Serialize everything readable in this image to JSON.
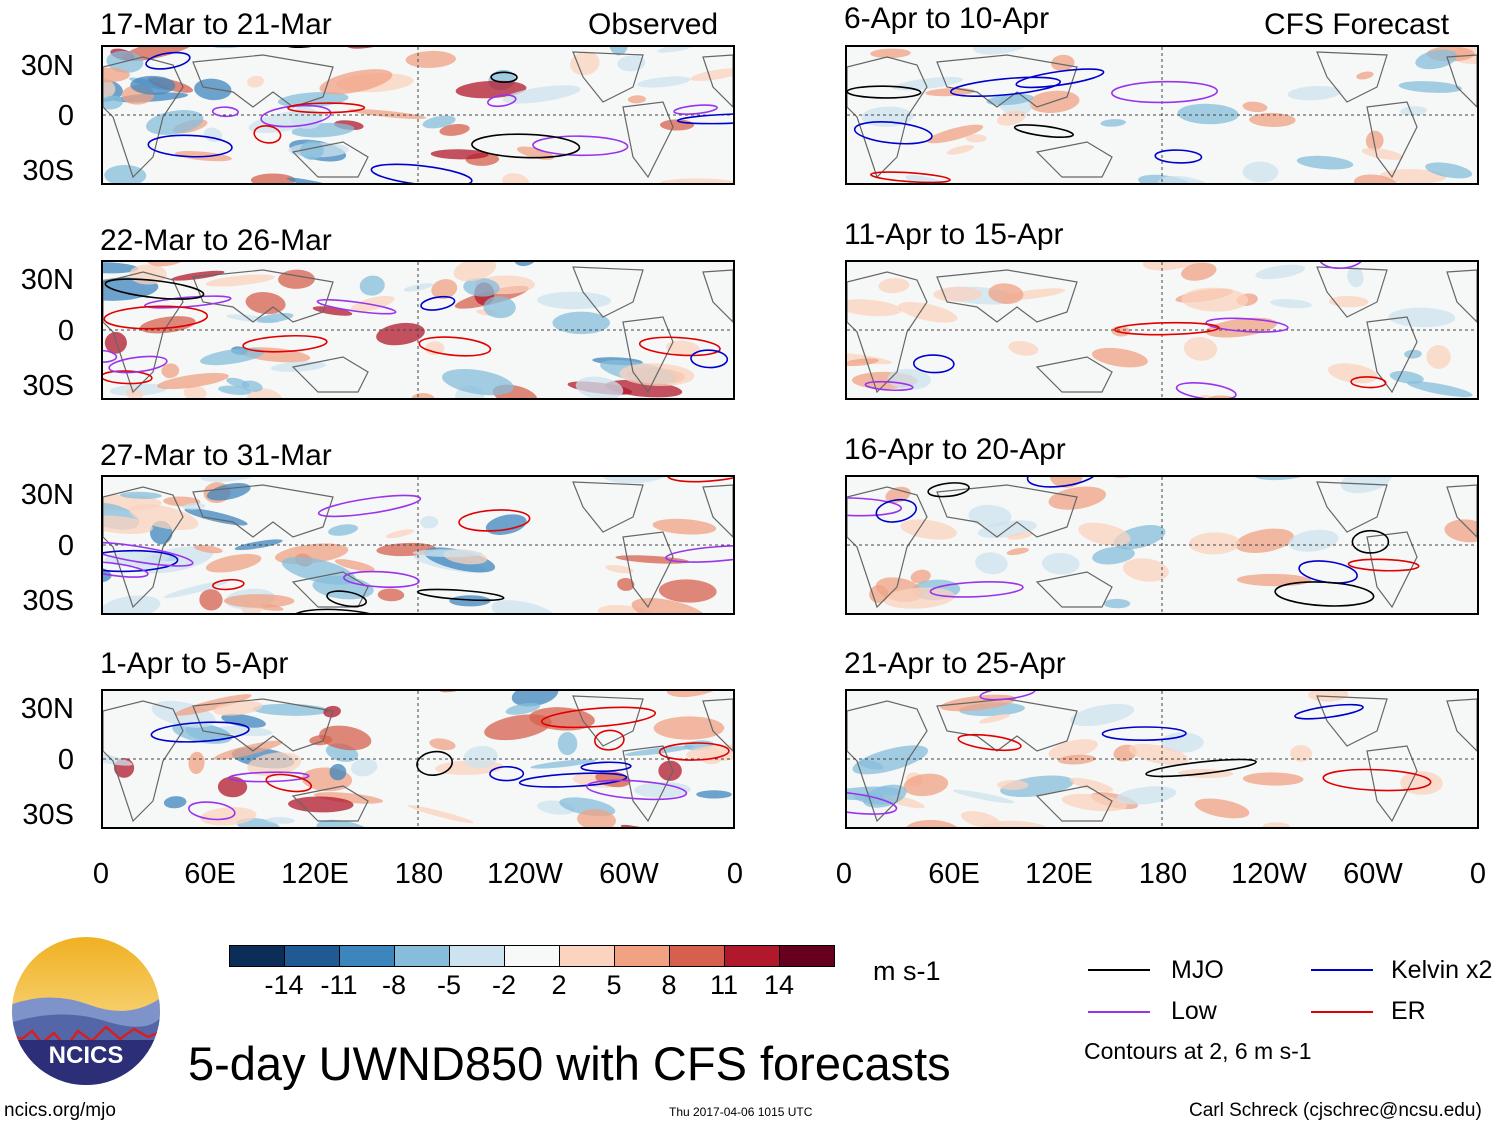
{
  "header": {
    "left_tag": "Observed",
    "right_tag": "CFS Forecast"
  },
  "panels_left": [
    {
      "period": "17-Mar to 21-Mar"
    },
    {
      "period": "22-Mar to 26-Mar"
    },
    {
      "period": "27-Mar to 31-Mar"
    },
    {
      "period": "1-Apr to 5-Apr"
    }
  ],
  "panels_right": [
    {
      "period": "6-Apr to 10-Apr"
    },
    {
      "period": "11-Apr to 15-Apr"
    },
    {
      "period": "16-Apr to 20-Apr"
    },
    {
      "period": "21-Apr to 25-Apr"
    }
  ],
  "chart_data": {
    "type": "heatmap",
    "variable": "UWND850",
    "title": "5-day UWND850 with CFS forecasts",
    "units": "m s-1",
    "y_ticks": [
      "30N",
      "0",
      "30S"
    ],
    "x_ticks": [
      "0",
      "60E",
      "120E",
      "180",
      "120W",
      "60W",
      "0"
    ],
    "colorbar": {
      "labels": [
        "-14",
        "-11",
        "-8",
        "-5",
        "-2",
        "2",
        "5",
        "8",
        "11",
        "14"
      ],
      "colors": [
        "#0b2e59",
        "#1f5a92",
        "#3d85bd",
        "#85bddb",
        "#cde3ef",
        "#f7f9f8",
        "#fbd3bf",
        "#f0a283",
        "#d6604d",
        "#b2182b",
        "#67001f"
      ]
    },
    "legend": [
      {
        "label": "MJO",
        "color": "#000000"
      },
      {
        "label": "Kelvin x2",
        "color": "#0000cc"
      },
      {
        "label": "Low",
        "color": "#9933ee"
      },
      {
        "label": "ER",
        "color": "#e00000"
      }
    ],
    "contour_note": "Contours at 2, 6 m s-1"
  },
  "footer": {
    "logo_text": "NCICS",
    "url": "ncics.org/mjo",
    "timestamp": "Thu 2017-04-06 1015 UTC",
    "author": "Carl Schreck (cjschrec@ncsu.edu)"
  }
}
